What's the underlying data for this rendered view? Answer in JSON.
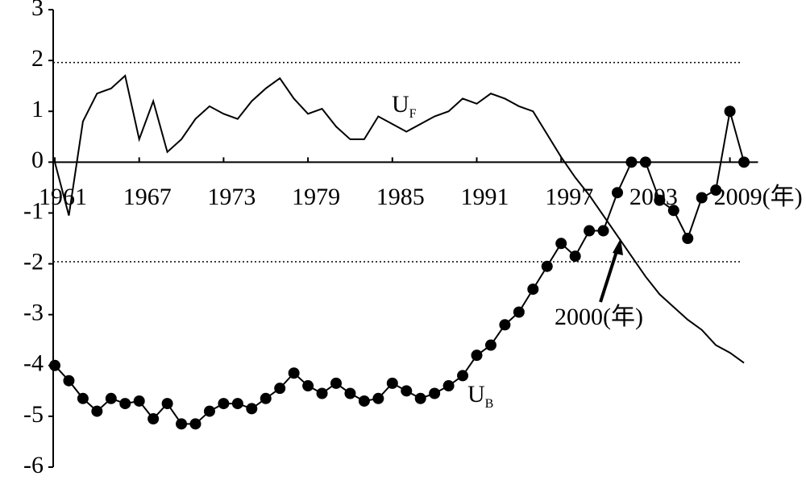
{
  "chart_data": {
    "type": "line",
    "x": [
      1961,
      1962,
      1963,
      1964,
      1965,
      1966,
      1967,
      1968,
      1969,
      1970,
      1971,
      1972,
      1973,
      1974,
      1975,
      1976,
      1977,
      1978,
      1979,
      1980,
      1981,
      1982,
      1983,
      1984,
      1985,
      1986,
      1987,
      1988,
      1989,
      1990,
      1991,
      1992,
      1993,
      1994,
      1995,
      1996,
      1997,
      1998,
      1999,
      2000,
      2001,
      2002,
      2003,
      2004,
      2005,
      2006,
      2007,
      2008,
      2009,
      2010
    ],
    "series": [
      {
        "name": "UF",
        "color": "#000000",
        "marker": "none",
        "values": [
          0,
          -1.05,
          0.8,
          1.35,
          1.45,
          1.7,
          0.45,
          1.2,
          0.2,
          0.45,
          0.85,
          1.1,
          0.95,
          0.85,
          1.2,
          1.45,
          1.65,
          1.25,
          0.95,
          1.05,
          0.7,
          0.45,
          0.45,
          0.9,
          0.75,
          0.6,
          0.75,
          0.9,
          1.0,
          1.25,
          1.15,
          1.35,
          1.25,
          1.1,
          1.0,
          0.55,
          0.1,
          -0.3,
          -0.65,
          -1.05,
          -1.45,
          -1.85,
          -2.25,
          -2.6,
          -2.85,
          -3.1,
          -3.3,
          -3.6,
          -3.75,
          -3.95
        ]
      },
      {
        "name": "UB",
        "color": "#000000",
        "marker": "circle",
        "values": [
          -4.0,
          -4.3,
          -4.65,
          -4.9,
          -4.65,
          -4.75,
          -4.7,
          -5.05,
          -4.75,
          -5.15,
          -5.15,
          -4.9,
          -4.75,
          -4.75,
          -4.85,
          -4.65,
          -4.45,
          -4.15,
          -4.4,
          -4.55,
          -4.35,
          -4.55,
          -4.7,
          -4.65,
          -4.35,
          -4.5,
          -4.65,
          -4.55,
          -4.4,
          -4.2,
          -3.8,
          -3.6,
          -3.2,
          -2.95,
          -2.5,
          -2.05,
          -1.6,
          -1.85,
          -1.35,
          -1.35,
          -0.6,
          0,
          0,
          -0.75,
          -0.95,
          -1.5,
          -0.7,
          -0.55,
          1.0,
          0
        ]
      }
    ],
    "xlim": [
      1961,
      2011
    ],
    "xticks": [
      1961,
      1967,
      1973,
      1979,
      1985,
      1991,
      1997,
      2003,
      {
        "value": 2009,
        "label": "2009(年)"
      }
    ],
    "ylim": [
      -6,
      3
    ],
    "yticks": [
      3,
      2,
      1,
      0,
      -1,
      -2,
      -3,
      -4,
      -5,
      -6
    ],
    "reference_lines": [
      1.96,
      -1.96
    ],
    "annotation": "2000(年)"
  }
}
